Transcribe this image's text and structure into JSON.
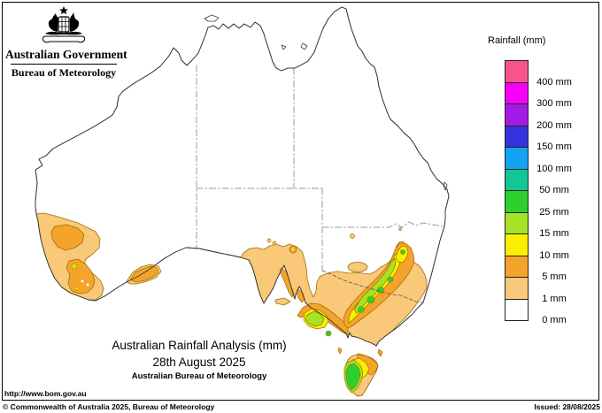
{
  "header": {
    "gov_line1": "Australian Government",
    "gov_line2": "Bureau of Meteorology"
  },
  "legend": {
    "title": "Rainfall (mm)",
    "entries": [
      {
        "label": "400 mm",
        "color": "#f8538c"
      },
      {
        "label": "300 mm",
        "color": "#f800f8"
      },
      {
        "label": "200 mm",
        "color": "#a31ae3"
      },
      {
        "label": "150 mm",
        "color": "#3333e0"
      },
      {
        "label": "100 mm",
        "color": "#14a3f0"
      },
      {
        "label": "50 mm",
        "color": "#12c795"
      },
      {
        "label": "25 mm",
        "color": "#2dd02d"
      },
      {
        "label": "15 mm",
        "color": "#a6e326"
      },
      {
        "label": "10 mm",
        "color": "#f8f000"
      },
      {
        "label": "5 mm",
        "color": "#f5a42b"
      },
      {
        "label": "1 mm",
        "color": "#f9c878"
      },
      {
        "label": "0 mm",
        "color": "#ffffff"
      }
    ]
  },
  "map": {
    "title_line1": "Australian Rainfall Analysis (mm)",
    "title_line2": "28th August 2025",
    "title_line3": "Australian Bureau of Meteorology"
  },
  "footer": {
    "url": "http://www.bom.gov.au",
    "copyright": "© Commonwealth of Australia 2025, Bureau of Meteorology",
    "issued": "Issued: 28/08/2025"
  },
  "palette": {
    "rain_1mm": "#f9c878",
    "rain_5mm": "#f5a42b",
    "rain_10mm": "#f8f000",
    "rain_15mm": "#a6e326",
    "rain_25mm": "#2dd02d",
    "land": "#ffffff",
    "coast": "#3a3a3a",
    "state_border": "#999999",
    "river_border": "#555555",
    "contour": "#a07000"
  }
}
